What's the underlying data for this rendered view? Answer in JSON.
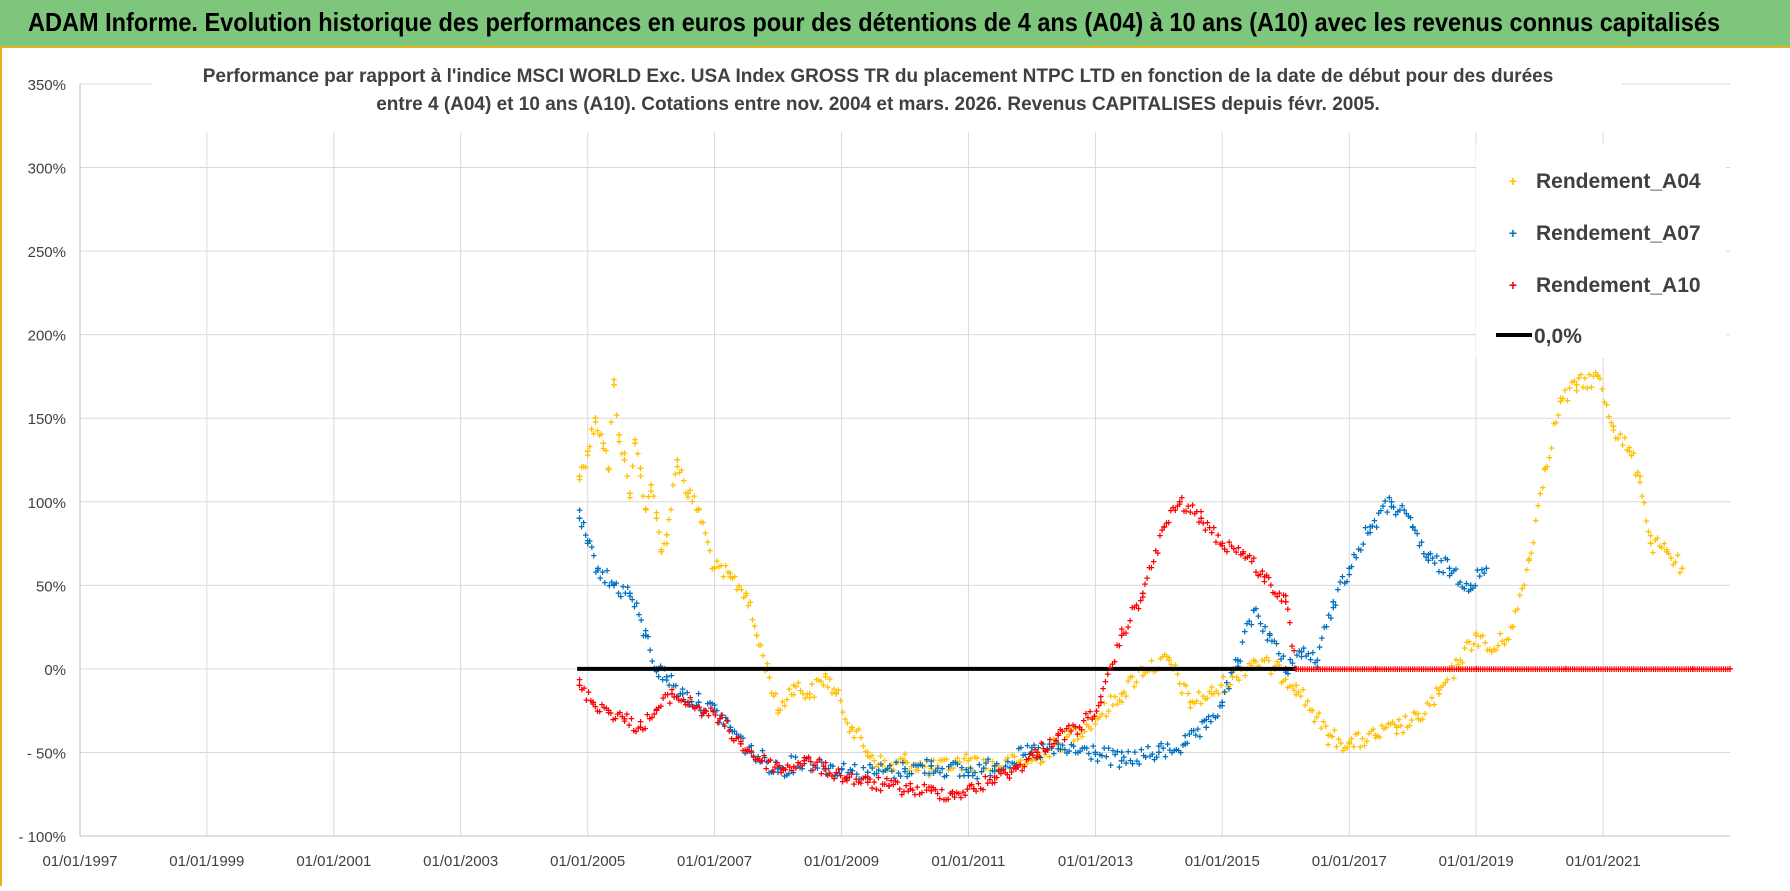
{
  "header": {
    "title": "ADAM Informe. Evolution historique des performances en euros pour des détentions de 4 ans (A04) à 10 ans (A10) avec les revenus connus capitalisés"
  },
  "colors": {
    "A04": "#ffc000",
    "A07": "#0070c0",
    "A10": "#ff0000",
    "zero": "#000000",
    "banner": "#7dc67b",
    "grid": "#d9d9d9"
  },
  "chart_data": {
    "type": "scatter",
    "title_lines": [
      "Performance par rapport à l'indice MSCI WORLD Exc. USA Index GROSS TR  du placement NTPC LTD en fonction de la date de début pour des durées",
      "entre 4 (A04) et 10 ans (A10). Cotations entre nov. 2004 et mars. 2026. Revenus CAPITALISES depuis févr. 2005."
    ],
    "xlabel": "",
    "ylabel": "",
    "x_ticks": [
      "01/01/1997",
      "01/01/1999",
      "01/01/2001",
      "01/01/2003",
      "01/01/2005",
      "01/01/2007",
      "01/01/2009",
      "01/01/2011",
      "01/01/2013",
      "01/01/2015",
      "01/01/2017",
      "01/01/2019",
      "01/01/2021"
    ],
    "x_range": [
      "1997-01-01",
      "2023-01-01"
    ],
    "y_ticks": [
      "350%",
      "300%",
      "250%",
      "200%",
      "150%",
      "100%",
      "50%",
      "0%",
      "- 50%",
      "- 100%"
    ],
    "y_range": [
      -100,
      350
    ],
    "grid": true,
    "legend_position": "top-right",
    "legend": [
      "Rendement_A04",
      "Rendement_A07",
      "Rendement_A10",
      "0,0%"
    ],
    "series": [
      {
        "name": "Rendement_A04",
        "marker": "plus",
        "points": [
          [
            "2004-11-15",
            115
          ],
          [
            "2005-01-01",
            130
          ],
          [
            "2005-02-15",
            150
          ],
          [
            "2005-04-01",
            135
          ],
          [
            "2005-05-01",
            120
          ],
          [
            "2005-06-01",
            170
          ],
          [
            "2005-07-01",
            140
          ],
          [
            "2005-08-01",
            125
          ],
          [
            "2005-09-01",
            105
          ],
          [
            "2005-10-01",
            135
          ],
          [
            "2005-11-01",
            120
          ],
          [
            "2005-12-01",
            95
          ],
          [
            "2006-01-01",
            110
          ],
          [
            "2006-02-01",
            90
          ],
          [
            "2006-03-01",
            70
          ],
          [
            "2006-04-01",
            80
          ],
          [
            "2006-06-01",
            125
          ],
          [
            "2006-08-01",
            105
          ],
          [
            "2006-10-01",
            95
          ],
          [
            "2007-01-01",
            60
          ],
          [
            "2007-04-01",
            55
          ],
          [
            "2007-07-01",
            45
          ],
          [
            "2007-09-01",
            20
          ],
          [
            "2007-11-01",
            0
          ],
          [
            "2008-01-01",
            -25
          ],
          [
            "2008-04-01",
            -10
          ],
          [
            "2008-07-01",
            -15
          ],
          [
            "2008-10-01",
            -5
          ],
          [
            "2008-12-01",
            -15
          ],
          [
            "2009-03-01",
            -35
          ],
          [
            "2009-06-01",
            -50
          ],
          [
            "2009-10-01",
            -60
          ],
          [
            "2010-01-01",
            -55
          ],
          [
            "2010-06-01",
            -60
          ],
          [
            "2011-01-01",
            -55
          ],
          [
            "2011-06-01",
            -58
          ],
          [
            "2012-01-01",
            -55
          ],
          [
            "2012-06-01",
            -45
          ],
          [
            "2013-01-01",
            -30
          ],
          [
            "2013-06-01",
            -15
          ],
          [
            "2013-10-01",
            0
          ],
          [
            "2014-03-01",
            5
          ],
          [
            "2014-07-01",
            -20
          ],
          [
            "2014-11-01",
            -15
          ],
          [
            "2015-03-01",
            -5
          ],
          [
            "2015-07-01",
            5
          ],
          [
            "2015-11-01",
            0
          ],
          [
            "2016-03-01",
            -10
          ],
          [
            "2016-06-01",
            -25
          ],
          [
            "2016-09-01",
            -40
          ],
          [
            "2017-01-01",
            -45
          ],
          [
            "2017-06-01",
            -40
          ],
          [
            "2017-10-01",
            -35
          ],
          [
            "2018-02-01",
            -30
          ],
          [
            "2018-06-01",
            -15
          ],
          [
            "2018-10-01",
            5
          ],
          [
            "2019-01-01",
            20
          ],
          [
            "2019-04-01",
            10
          ],
          [
            "2019-08-01",
            25
          ],
          [
            "2019-11-01",
            65
          ],
          [
            "2020-02-01",
            120
          ],
          [
            "2020-05-01",
            160
          ],
          [
            "2020-08-01",
            170
          ],
          [
            "2020-12-01",
            175
          ],
          [
            "2021-03-01",
            145
          ],
          [
            "2021-06-01",
            130
          ],
          [
            "2021-08-01",
            115
          ],
          [
            "2021-10-01",
            75
          ],
          [
            "2022-01-01",
            70
          ],
          [
            "2022-04-01",
            60
          ]
        ]
      },
      {
        "name": "Rendement_A07",
        "marker": "plus",
        "points": [
          [
            "2004-11-15",
            90
          ],
          [
            "2005-01-01",
            75
          ],
          [
            "2005-03-01",
            60
          ],
          [
            "2005-06-01",
            50
          ],
          [
            "2005-09-01",
            45
          ],
          [
            "2005-12-01",
            20
          ],
          [
            "2006-02-01",
            0
          ],
          [
            "2006-04-01",
            -5
          ],
          [
            "2006-07-01",
            -15
          ],
          [
            "2006-10-01",
            -20
          ],
          [
            "2007-01-01",
            -25
          ],
          [
            "2007-04-01",
            -35
          ],
          [
            "2007-08-01",
            -50
          ],
          [
            "2008-01-01",
            -60
          ],
          [
            "2008-06-01",
            -55
          ],
          [
            "2009-01-01",
            -60
          ],
          [
            "2009-06-01",
            -62
          ],
          [
            "2010-01-01",
            -60
          ],
          [
            "2010-06-01",
            -58
          ],
          [
            "2011-01-01",
            -62
          ],
          [
            "2011-06-01",
            -58
          ],
          [
            "2012-01-01",
            -50
          ],
          [
            "2012-06-01",
            -48
          ],
          [
            "2013-01-01",
            -50
          ],
          [
            "2013-06-01",
            -55
          ],
          [
            "2014-01-01",
            -50
          ],
          [
            "2014-06-01",
            -45
          ],
          [
            "2014-10-01",
            -35
          ],
          [
            "2015-01-01",
            -20
          ],
          [
            "2015-04-01",
            5
          ],
          [
            "2015-07-01",
            35
          ],
          [
            "2015-10-01",
            20
          ],
          [
            "2016-01-01",
            0
          ],
          [
            "2016-04-01",
            10
          ],
          [
            "2016-07-01",
            5
          ],
          [
            "2016-10-01",
            40
          ],
          [
            "2017-01-01",
            60
          ],
          [
            "2017-05-01",
            85
          ],
          [
            "2017-09-01",
            100
          ],
          [
            "2018-01-01",
            85
          ],
          [
            "2018-04-01",
            65
          ],
          [
            "2018-08-01",
            60
          ],
          [
            "2018-12-01",
            50
          ],
          [
            "2019-03-01",
            60
          ]
        ]
      },
      {
        "name": "Rendement_A10",
        "marker": "plus",
        "points": [
          [
            "2004-11-15",
            -10
          ],
          [
            "2005-02-01",
            -20
          ],
          [
            "2005-05-01",
            -25
          ],
          [
            "2005-08-01",
            -30
          ],
          [
            "2005-11-01",
            -35
          ],
          [
            "2006-02-01",
            -25
          ],
          [
            "2006-05-01",
            -15
          ],
          [
            "2006-08-01",
            -20
          ],
          [
            "2006-11-01",
            -25
          ],
          [
            "2007-02-01",
            -30
          ],
          [
            "2007-06-01",
            -45
          ],
          [
            "2007-10-01",
            -55
          ],
          [
            "2008-02-01",
            -60
          ],
          [
            "2008-06-01",
            -55
          ],
          [
            "2008-10-01",
            -60
          ],
          [
            "2009-02-01",
            -65
          ],
          [
            "2009-06-01",
            -68
          ],
          [
            "2009-10-01",
            -70
          ],
          [
            "2010-02-01",
            -72
          ],
          [
            "2010-06-01",
            -73
          ],
          [
            "2010-10-01",
            -75
          ],
          [
            "2011-02-01",
            -72
          ],
          [
            "2011-06-01",
            -65
          ],
          [
            "2011-10-01",
            -60
          ],
          [
            "2012-02-01",
            -50
          ],
          [
            "2012-06-01",
            -40
          ],
          [
            "2012-10-01",
            -35
          ],
          [
            "2013-02-01",
            -20
          ],
          [
            "2013-06-01",
            20
          ],
          [
            "2013-10-01",
            45
          ],
          [
            "2014-02-01",
            85
          ],
          [
            "2014-05-01",
            100
          ],
          [
            "2014-09-01",
            90
          ],
          [
            "2015-01-01",
            75
          ],
          [
            "2015-05-01",
            70
          ],
          [
            "2015-09-01",
            55
          ],
          [
            "2016-01-01",
            40
          ],
          [
            "2016-03-01",
            0
          ],
          [
            "2017-06-01",
            0
          ],
          [
            "2019-01-01",
            0
          ],
          [
            "2020-06-01",
            0
          ],
          [
            "2022-06-01",
            0
          ],
          [
            "2023-01-01",
            0
          ]
        ]
      },
      {
        "name": "0,0%",
        "type": "line",
        "points": [
          [
            "2004-11-01",
            0
          ],
          [
            "2016-03-01",
            0
          ]
        ]
      }
    ]
  }
}
